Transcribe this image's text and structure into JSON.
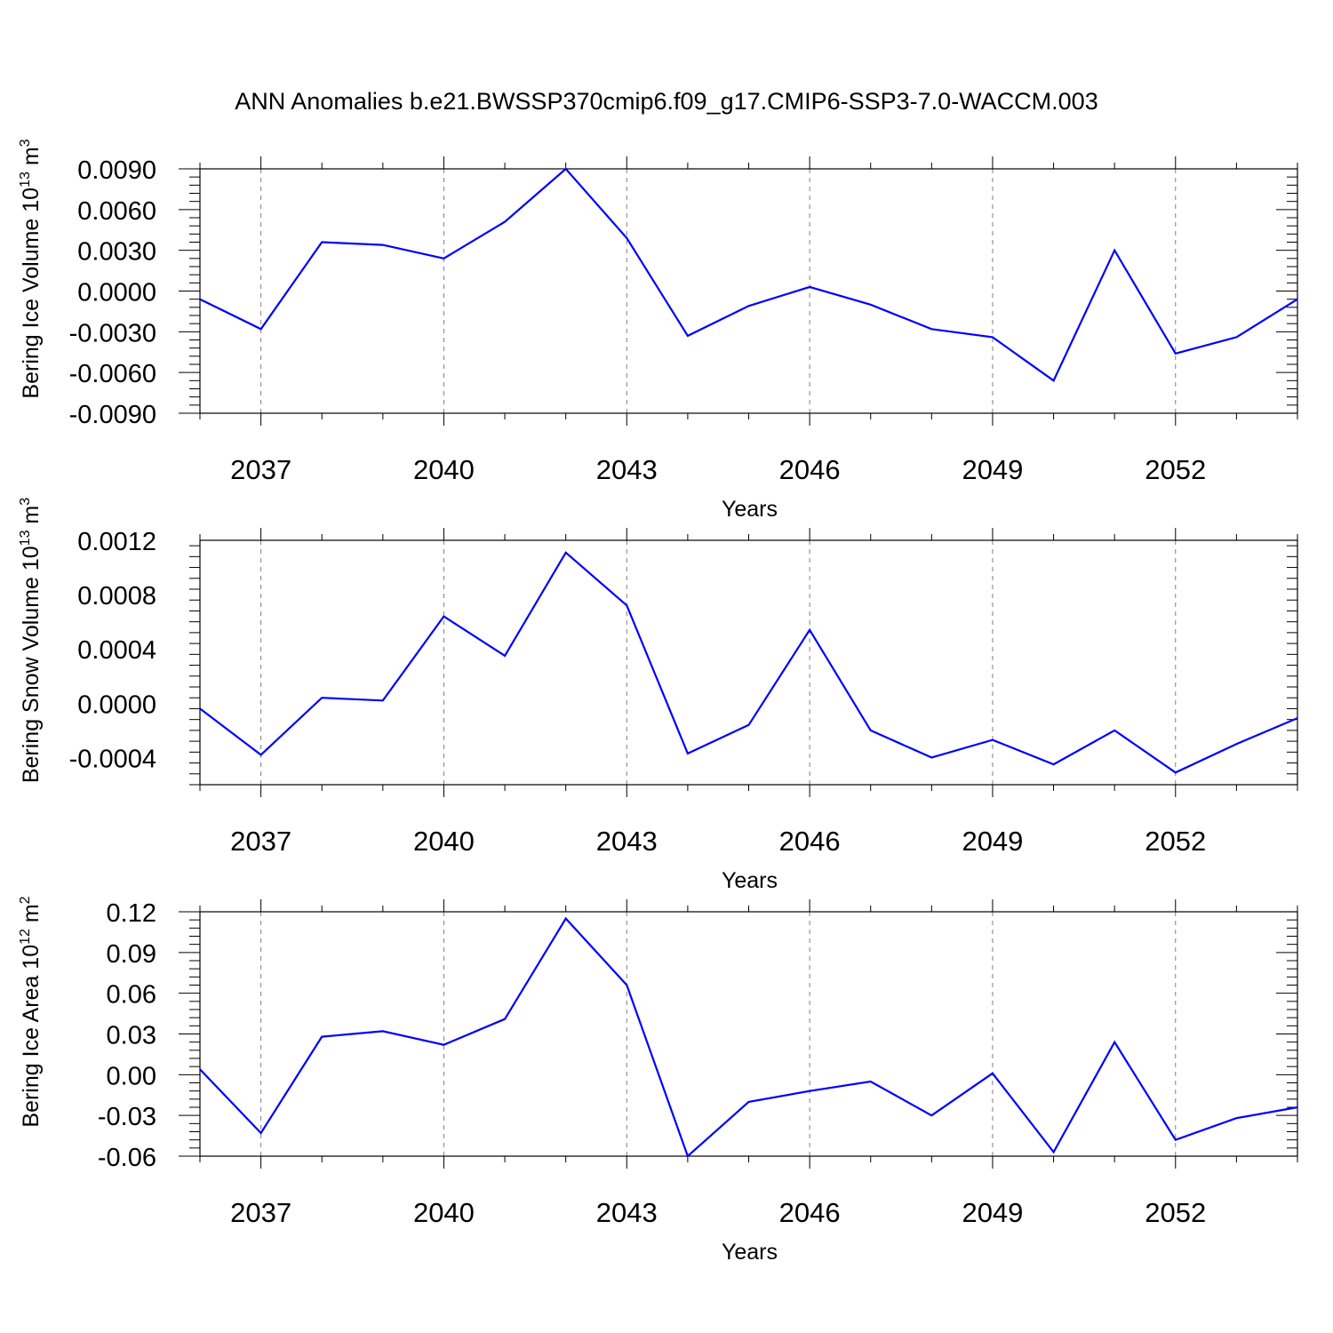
{
  "title": "ANN Anomalies b.e21.BWSSP370cmip6.f09_g17.CMIP6-SSP3-7.0-WACCM.003",
  "colors": {
    "line": "#0000ff",
    "axis": "#000000",
    "grid": "#808080"
  },
  "chart_data": [
    {
      "type": "line",
      "ylabel_main": "Bering Ice Volume 10",
      "ylabel_exp": "13",
      "ylabel_unit": "m",
      "ylabel_unit_exp": "3",
      "xlabel": "Years",
      "xlim": [
        2036,
        2054
      ],
      "ylim": [
        -0.009,
        0.009
      ],
      "xticks": [
        2037,
        2040,
        2043,
        2046,
        2049,
        2052
      ],
      "xtick_labels": [
        "2037",
        "2040",
        "2043",
        "2046",
        "2049",
        "2052"
      ],
      "yticks": [
        -0.009,
        -0.006,
        -0.003,
        0.0,
        0.003,
        0.006,
        0.009
      ],
      "ytick_labels": [
        "-0.0090",
        "-0.0060",
        "-0.0030",
        "0.0000",
        "0.0030",
        "0.0060",
        "0.0090"
      ],
      "grid": "vertical-dashed",
      "x": [
        2036,
        2037,
        2038,
        2039,
        2040,
        2041,
        2042,
        2043,
        2044,
        2045,
        2046,
        2047,
        2048,
        2049,
        2050,
        2051,
        2052,
        2053,
        2054
      ],
      "values": [
        -0.0006,
        -0.0028,
        0.0036,
        0.0034,
        0.0024,
        0.0051,
        0.009,
        0.0039,
        -0.0033,
        -0.0011,
        0.0003,
        -0.001,
        -0.0028,
        -0.0034,
        -0.0066,
        0.003,
        -0.0046,
        -0.0034,
        -0.0006
      ]
    },
    {
      "type": "line",
      "ylabel_main": "Bering Snow Volume 10",
      "ylabel_exp": "13",
      "ylabel_unit": "m",
      "ylabel_unit_exp": "3",
      "xlabel": "Years",
      "xlim": [
        2036,
        2054
      ],
      "ylim": [
        -0.0006,
        0.0012
      ],
      "xticks": [
        2037,
        2040,
        2043,
        2046,
        2049,
        2052
      ],
      "xtick_labels": [
        "2037",
        "2040",
        "2043",
        "2046",
        "2049",
        "2052"
      ],
      "yticks": [
        -0.0004,
        0.0,
        0.0004,
        0.0008,
        0.0012
      ],
      "ytick_labels": [
        "-0.0004",
        "0.0000",
        "0.0004",
        "0.0008",
        "0.0012"
      ],
      "grid": "vertical-dashed",
      "x": [
        2036,
        2037,
        2038,
        2039,
        2040,
        2041,
        2042,
        2043,
        2044,
        2045,
        2046,
        2047,
        2048,
        2049,
        2050,
        2051,
        2052,
        2053,
        2054
      ],
      "values": [
        -4e-05,
        -0.00038,
        4e-05,
        2e-05,
        0.00064,
        0.00035,
        0.00111,
        0.00072,
        -0.00037,
        -0.00016,
        0.00054,
        -0.0002,
        -0.0004,
        -0.00027,
        -0.00045,
        -0.0002,
        -0.00051,
        -0.0003,
        -0.00011
      ]
    },
    {
      "type": "line",
      "ylabel_main": "Bering Ice Area 10",
      "ylabel_exp": "12",
      "ylabel_unit": "m",
      "ylabel_unit_exp": "2",
      "xlabel": "Years",
      "xlim": [
        2036,
        2054
      ],
      "ylim": [
        -0.06,
        0.12
      ],
      "xticks": [
        2037,
        2040,
        2043,
        2046,
        2049,
        2052
      ],
      "xtick_labels": [
        "2037",
        "2040",
        "2043",
        "2046",
        "2049",
        "2052"
      ],
      "yticks": [
        -0.06,
        -0.03,
        0.0,
        0.03,
        0.06,
        0.09,
        0.12
      ],
      "ytick_labels": [
        "-0.06",
        "-0.03",
        "0.00",
        "0.03",
        "0.06",
        "0.09",
        "0.12"
      ],
      "grid": "vertical-dashed",
      "x": [
        2036,
        2037,
        2038,
        2039,
        2040,
        2041,
        2042,
        2043,
        2044,
        2045,
        2046,
        2047,
        2048,
        2049,
        2050,
        2051,
        2052,
        2053,
        2054
      ],
      "values": [
        0.004,
        -0.043,
        0.028,
        0.032,
        0.022,
        0.041,
        0.115,
        0.066,
        -0.06,
        -0.02,
        -0.012,
        -0.005,
        -0.03,
        0.001,
        -0.057,
        0.024,
        -0.048,
        -0.032,
        -0.024
      ]
    }
  ]
}
